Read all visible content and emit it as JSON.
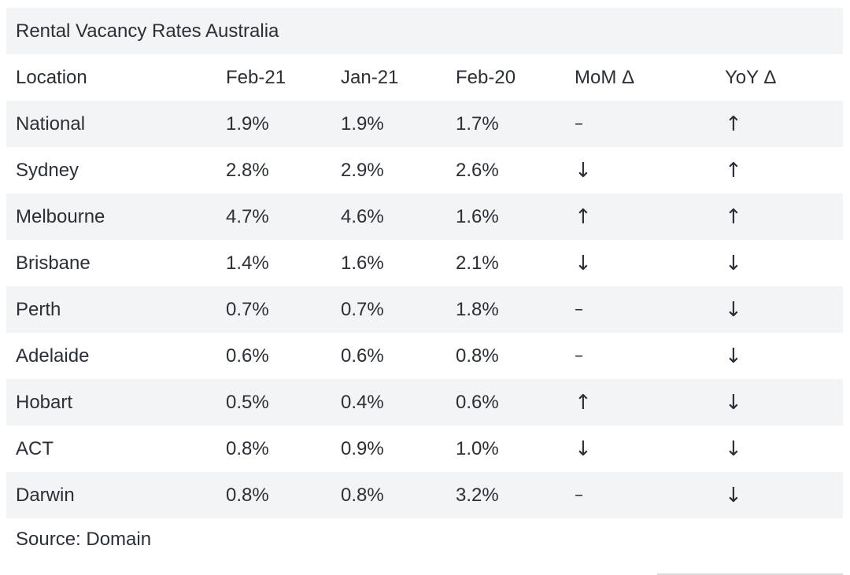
{
  "table": {
    "title": "Rental Vacancy Rates Australia",
    "headers": [
      "Location",
      "Feb-21",
      "Jan-21",
      "Feb-20",
      "MoM Δ",
      "YoY Δ"
    ],
    "rows": [
      {
        "location": "National",
        "feb21": "1.9%",
        "jan21": "1.9%",
        "feb20": "1.7%",
        "mom": "–",
        "yoy": "↑"
      },
      {
        "location": "Sydney",
        "feb21": "2.8%",
        "jan21": "2.9%",
        "feb20": "2.6%",
        "mom": "↓",
        "yoy": "↑"
      },
      {
        "location": "Melbourne",
        "feb21": "4.7%",
        "jan21": "4.6%",
        "feb20": "1.6%",
        "mom": "↑",
        "yoy": "↑"
      },
      {
        "location": "Brisbane",
        "feb21": "1.4%",
        "jan21": "1.6%",
        "feb20": "2.1%",
        "mom": "↓",
        "yoy": "↓"
      },
      {
        "location": "Perth",
        "feb21": "0.7%",
        "jan21": "0.7%",
        "feb20": "1.8%",
        "mom": "–",
        "yoy": "↓"
      },
      {
        "location": "Adelaide",
        "feb21": "0.6%",
        "jan21": "0.6%",
        "feb20": "0.8%",
        "mom": "–",
        "yoy": "↓"
      },
      {
        "location": "Hobart",
        "feb21": "0.5%",
        "jan21": "0.4%",
        "feb20": "0.6%",
        "mom": "↑",
        "yoy": "↓"
      },
      {
        "location": "ACT",
        "feb21": "0.8%",
        "jan21": "0.9%",
        "feb20": "1.0%",
        "mom": "↓",
        "yoy": "↓"
      },
      {
        "location": "Darwin",
        "feb21": "0.8%",
        "jan21": "0.8%",
        "feb20": "3.2%",
        "mom": "–",
        "yoy": "↓"
      }
    ]
  },
  "source": "Source: Domain",
  "colors": {
    "row_alt_bg": "#f3f4f5",
    "text": "#2b3036"
  }
}
